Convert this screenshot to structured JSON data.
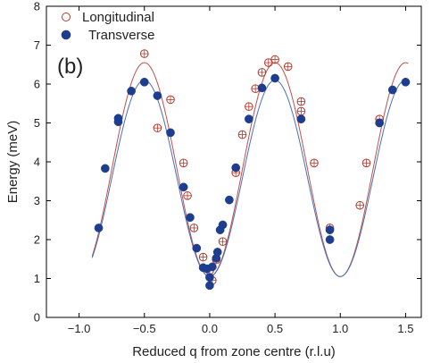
{
  "chart_data": {
    "type": "scatter",
    "panel_label": "(b)",
    "xlabel": "Reduced q from zone centre (r.l.u)",
    "ylabel": "Energy (meV)",
    "xlim": [
      -1.25,
      1.62
    ],
    "ylim": [
      0,
      8
    ],
    "xticks": [
      -1.0,
      -0.5,
      0.0,
      0.5,
      1.0,
      1.5
    ],
    "xtick_labels": [
      "−1.0",
      "−0.5",
      "0.0",
      "0.5",
      "1.0",
      "1.5"
    ],
    "yticks": [
      0,
      1,
      2,
      3,
      4,
      5,
      6,
      7,
      8
    ],
    "ytick_labels": [
      "0",
      "1",
      "2",
      "3",
      "4",
      "5",
      "6",
      "7",
      "8"
    ],
    "grid": false,
    "legend_position": "top-left",
    "series": [
      {
        "name": "Longitudinal",
        "marker": "open-circle-with-error-bar",
        "color": "#b33b2e",
        "points": [
          [
            -0.5,
            6.78
          ],
          [
            -0.3,
            5.6
          ],
          [
            -0.4,
            4.87
          ],
          [
            -0.2,
            3.97
          ],
          [
            -0.17,
            3.13
          ],
          [
            -0.12,
            2.3
          ],
          [
            -0.05,
            1.55
          ],
          [
            0.0,
            1.2
          ],
          [
            0.02,
            0.95
          ],
          [
            0.05,
            1.48
          ],
          [
            0.1,
            1.95
          ],
          [
            0.2,
            3.72
          ],
          [
            0.25,
            4.7
          ],
          [
            0.3,
            5.42
          ],
          [
            0.35,
            5.88
          ],
          [
            0.4,
            6.3
          ],
          [
            0.45,
            6.55
          ],
          [
            0.5,
            6.63
          ],
          [
            0.6,
            6.45
          ],
          [
            0.7,
            5.55
          ],
          [
            0.7,
            5.3
          ],
          [
            0.8,
            3.97
          ],
          [
            0.92,
            2.3
          ],
          [
            1.15,
            2.88
          ],
          [
            1.2,
            3.97
          ],
          [
            1.3,
            5.1
          ]
        ]
      },
      {
        "name": "Transverse",
        "marker": "filled-circle",
        "color": "#1e3d8f",
        "points": [
          [
            -0.85,
            2.3
          ],
          [
            -0.8,
            3.83
          ],
          [
            -0.7,
            5.03
          ],
          [
            -0.7,
            5.12
          ],
          [
            -0.6,
            5.82
          ],
          [
            -0.5,
            6.05
          ],
          [
            -0.4,
            5.7
          ],
          [
            -0.3,
            4.75
          ],
          [
            -0.2,
            3.35
          ],
          [
            -0.15,
            2.57
          ],
          [
            -0.1,
            1.78
          ],
          [
            -0.05,
            1.28
          ],
          [
            -0.02,
            1.25
          ],
          [
            0.0,
            0.82
          ],
          [
            0.0,
            1.03
          ],
          [
            0.02,
            1.3
          ],
          [
            0.05,
            1.52
          ],
          [
            0.06,
            1.68
          ],
          [
            0.08,
            2.25
          ],
          [
            0.1,
            2.38
          ],
          [
            0.15,
            3.02
          ],
          [
            0.2,
            3.85
          ],
          [
            0.3,
            5.1
          ],
          [
            0.4,
            5.9
          ],
          [
            0.5,
            6.15
          ],
          [
            0.7,
            5.1
          ],
          [
            0.92,
            2.0
          ],
          [
            0.92,
            2.25
          ],
          [
            1.3,
            5.0
          ],
          [
            1.4,
            5.85
          ],
          [
            1.5,
            6.05
          ]
        ]
      }
    ],
    "fit_curves": [
      {
        "color": "#c0504d",
        "peak_max": 6.55,
        "peak_min": 1.05
      },
      {
        "color": "#4b6fb8",
        "peak_max": 6.1,
        "peak_min": 1.05
      }
    ]
  }
}
